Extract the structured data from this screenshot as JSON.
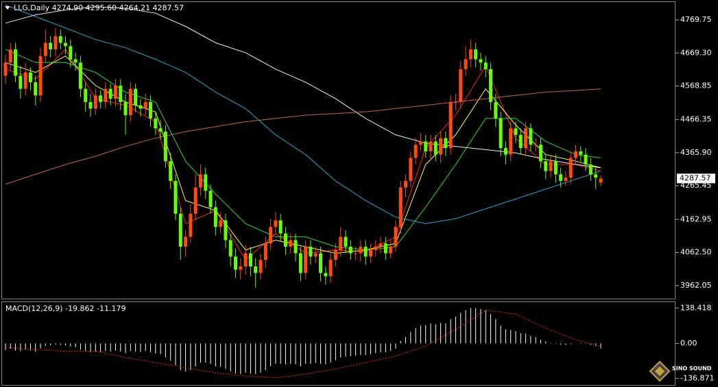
{
  "watermark": "SINO SOUND",
  "chart_data": [
    {
      "type": "candlestick",
      "title": "LLG,Daily  4274.90 4295.60 4264.21 4287.57",
      "up_color": "#ff4a10",
      "down_color": "#66ff00",
      "ylim": [
        3922,
        4824
      ],
      "yticks": [
        4769.75,
        {
          "value": 4669.3,
          "label": "4669.30"
        },
        4568.85,
        4466.35,
        {
          "value": 4365.9,
          "label": "4365.90"
        },
        4265.45,
        4162.95,
        {
          "value": 4062.5,
          "label": "4062.50"
        },
        3962.05
      ],
      "open": [
        4600,
        4640,
        4680,
        4600,
        4560,
        4610,
        4580,
        4540,
        4660,
        4700,
        4680,
        4720,
        4700,
        4690,
        4650,
        4640,
        4560,
        4520,
        4500,
        4540,
        4520,
        4560,
        4530,
        4570,
        4520,
        4480,
        4560,
        4510,
        4500,
        4520,
        4470,
        4440,
        4430,
        4340,
        4280,
        4180,
        4080,
        4110,
        4180,
        4260,
        4300,
        4250,
        4200,
        4140,
        4160,
        4100,
        4050,
        4010,
        4020,
        4060,
        4020,
        4000,
        4040,
        4090,
        4140,
        4160,
        4120,
        4080,
        4100,
        4060,
        4000,
        4080,
        4050,
        4060,
        4000,
        3990,
        4040,
        4070,
        4110,
        4080,
        4060,
        4060,
        4080,
        4050,
        4070,
        4080,
        4090,
        4060,
        4080,
        4140,
        4260,
        4280,
        4350,
        4390,
        4400,
        4370,
        4400,
        4360,
        4410,
        4380,
        4520,
        4520,
        4620,
        4650,
        4680,
        4650,
        4640,
        4620,
        4520,
        4470,
        4380,
        4360,
        4440,
        4420,
        4380,
        4440,
        4390,
        4390,
        4340,
        4310,
        4340,
        4300,
        4280,
        4290,
        4350,
        4370,
        4360,
        4330,
        4300,
        4274.9
      ],
      "high": [
        4665,
        4700,
        4700,
        4630,
        4640,
        4625,
        4600,
        4685,
        4740,
        4720,
        4745,
        4740,
        4720,
        4710,
        4670,
        4660,
        4580,
        4545,
        4560,
        4555,
        4580,
        4575,
        4590,
        4590,
        4545,
        4580,
        4575,
        4530,
        4545,
        4540,
        4490,
        4465,
        4450,
        4365,
        4300,
        4200,
        4130,
        4210,
        4300,
        4330,
        4320,
        4270,
        4220,
        4185,
        4180,
        4120,
        4075,
        4045,
        4085,
        4080,
        4045,
        4060,
        4110,
        4165,
        4185,
        4180,
        4140,
        4120,
        4120,
        4080,
        4100,
        4100,
        4080,
        4080,
        4020,
        4060,
        4090,
        4140,
        4130,
        4100,
        4080,
        4100,
        4100,
        4090,
        4100,
        4110,
        4110,
        4100,
        4160,
        4280,
        4300,
        4370,
        4410,
        4425,
        4420,
        4420,
        4420,
        4430,
        4430,
        4540,
        4545,
        4645,
        4690,
        4710,
        4700,
        4670,
        4660,
        4640,
        4545,
        4490,
        4400,
        4460,
        4460,
        4440,
        4460,
        4455,
        4410,
        4410,
        4360,
        4360,
        4360,
        4320,
        4310,
        4370,
        4390,
        4385,
        4380,
        4350,
        4320,
        4295.6
      ],
      "low": [
        4575,
        4620,
        4580,
        4530,
        4540,
        4555,
        4510,
        4520,
        4640,
        4655,
        4660,
        4680,
        4665,
        4625,
        4615,
        4535,
        4490,
        4475,
        4480,
        4500,
        4500,
        4510,
        4505,
        4495,
        4420,
        4460,
        4490,
        4475,
        4480,
        4445,
        4420,
        4405,
        4320,
        4255,
        4160,
        4040,
        4050,
        4090,
        4160,
        4235,
        4225,
        4180,
        4115,
        4120,
        4075,
        4020,
        3985,
        3980,
        3995,
        3990,
        3955,
        3980,
        4015,
        4070,
        4115,
        4095,
        4055,
        4060,
        4035,
        3975,
        3980,
        4025,
        4030,
        3975,
        3965,
        3970,
        4020,
        4050,
        4060,
        4040,
        4040,
        4035,
        4025,
        4030,
        4050,
        4060,
        4040,
        4045,
        4065,
        4120,
        4230,
        4260,
        4330,
        4370,
        4350,
        4345,
        4340,
        4335,
        4355,
        4360,
        4495,
        4500,
        4600,
        4625,
        4625,
        4615,
        4595,
        4495,
        4445,
        4355,
        4330,
        4340,
        4395,
        4360,
        4355,
        4370,
        4370,
        4320,
        4285,
        4290,
        4275,
        4260,
        4265,
        4270,
        4330,
        4340,
        4310,
        4280,
        4255,
        4264.21
      ],
      "close": [
        4640,
        4680,
        4600,
        4560,
        4610,
        4580,
        4540,
        4660,
        4700,
        4680,
        4720,
        4700,
        4690,
        4650,
        4640,
        4560,
        4520,
        4500,
        4540,
        4520,
        4560,
        4530,
        4570,
        4520,
        4480,
        4560,
        4510,
        4500,
        4520,
        4470,
        4440,
        4430,
        4340,
        4280,
        4180,
        4080,
        4110,
        4180,
        4260,
        4300,
        4250,
        4200,
        4140,
        4160,
        4100,
        4050,
        4010,
        4020,
        4060,
        4020,
        4000,
        4040,
        4090,
        4140,
        4160,
        4120,
        4080,
        4100,
        4060,
        4000,
        4080,
        4050,
        4060,
        4000,
        3990,
        4040,
        4070,
        4110,
        4080,
        4060,
        4060,
        4080,
        4050,
        4070,
        4080,
        4090,
        4060,
        4080,
        4140,
        4260,
        4280,
        4350,
        4390,
        4400,
        4370,
        4400,
        4360,
        4410,
        4380,
        4520,
        4520,
        4620,
        4650,
        4680,
        4650,
        4640,
        4620,
        4520,
        4470,
        4380,
        4360,
        4440,
        4420,
        4380,
        4440,
        4390,
        4390,
        4340,
        4310,
        4340,
        4300,
        4280,
        4290,
        4350,
        4370,
        4360,
        4330,
        4300,
        4290,
        4287.57
      ],
      "series": [
        {
          "color": "#ff2a00",
          "x": [
            0,
            6,
            12,
            18,
            24,
            30,
            36,
            42,
            48,
            54,
            60,
            66,
            72,
            78,
            84,
            90,
            96,
            102,
            108,
            114,
            119
          ],
          "values": [
            4620,
            4590,
            4680,
            4530,
            4510,
            4460,
            4150,
            4190,
            4040,
            4120,
            4060,
            4070,
            4065,
            4110,
            4380,
            4480,
            4630,
            4410,
            4330,
            4330,
            4310
          ]
        },
        {
          "color": "#ffff60",
          "x": [
            0,
            6,
            12,
            18,
            24,
            30,
            36,
            42,
            48,
            54,
            60,
            66,
            72,
            78,
            84,
            90,
            96,
            102,
            108,
            114,
            119
          ],
          "values": [
            4640,
            4610,
            4660,
            4570,
            4520,
            4490,
            4220,
            4190,
            4070,
            4100,
            4080,
            4060,
            4070,
            4090,
            4330,
            4420,
            4560,
            4450,
            4360,
            4340,
            4320
          ]
        },
        {
          "color": "#33dd33",
          "x": [
            0,
            6,
            12,
            18,
            24,
            30,
            36,
            42,
            48,
            54,
            60,
            66,
            72,
            78,
            84,
            90,
            96,
            102,
            108,
            114,
            119
          ],
          "values": [
            4680,
            4640,
            4640,
            4610,
            4550,
            4520,
            4340,
            4240,
            4150,
            4110,
            4110,
            4080,
            4070,
            4080,
            4200,
            4330,
            4470,
            4470,
            4400,
            4360,
            4350
          ]
        },
        {
          "color": "#22aacc",
          "x": [
            0,
            6,
            12,
            18,
            24,
            30,
            36,
            42,
            48,
            54,
            60,
            66,
            72,
            78,
            84,
            90,
            96,
            102,
            108,
            114,
            119
          ],
          "values": [
            4815,
            4780,
            4745,
            4710,
            4685,
            4650,
            4610,
            4550,
            4500,
            4420,
            4360,
            4280,
            4220,
            4170,
            4150,
            4165,
            4195,
            4225,
            4255,
            4285,
            4310
          ]
        },
        {
          "color": "#f0f0f0",
          "x": [
            0,
            6,
            12,
            18,
            24,
            30,
            36,
            42,
            48,
            54,
            60,
            66,
            72,
            78,
            84,
            90,
            96,
            102,
            108,
            114,
            119
          ],
          "values": [
            4760,
            4785,
            4800,
            4810,
            4805,
            4790,
            4750,
            4700,
            4670,
            4620,
            4580,
            4530,
            4470,
            4420,
            4395,
            4385,
            4375,
            4365,
            4345,
            4330,
            4320
          ]
        },
        {
          "color": "#d06050",
          "x": [
            0,
            6,
            12,
            18,
            24,
            30,
            36,
            42,
            48,
            54,
            60,
            66,
            72,
            78,
            84,
            90,
            96,
            102,
            108,
            114,
            119
          ],
          "values": [
            4270,
            4300,
            4330,
            4355,
            4385,
            4410,
            4430,
            4445,
            4460,
            4470,
            4480,
            4485,
            4490,
            4500,
            4510,
            4520,
            4530,
            4540,
            4550,
            4555,
            4560
          ]
        }
      ]
    },
    {
      "type": "macd",
      "title": "MACD(12,26,9) -19.862 -11.179",
      "color": "#ffffff",
      "ylim": [
        -160,
        162
      ],
      "yticks": [
        138.418,
        {
          "value": 0,
          "label": "0.00"
        },
        -136.871
      ],
      "values": [
        -25,
        -20,
        -28,
        -30,
        -25,
        -28,
        -32,
        -20,
        -10,
        -8,
        -5,
        -6,
        -8,
        -12,
        -15,
        -25,
        -32,
        -35,
        -32,
        -33,
        -30,
        -32,
        -28,
        -32,
        -38,
        -30,
        -32,
        -33,
        -30,
        -35,
        -40,
        -42,
        -55,
        -68,
        -85,
        -105,
        -110,
        -105,
        -90,
        -75,
        -75,
        -80,
        -90,
        -92,
        -100,
        -110,
        -118,
        -120,
        -115,
        -118,
        -120,
        -115,
        -105,
        -90,
        -80,
        -80,
        -82,
        -80,
        -82,
        -90,
        -80,
        -80,
        -76,
        -80,
        -82,
        -75,
        -65,
        -55,
        -52,
        -50,
        -48,
        -45,
        -45,
        -42,
        -38,
        -35,
        -35,
        -30,
        -20,
        10,
        25,
        45,
        60,
        70,
        72,
        78,
        75,
        80,
        78,
        95,
        105,
        120,
        130,
        138,
        138,
        135,
        130,
        115,
        95,
        70,
        55,
        52,
        48,
        40,
        38,
        30,
        25,
        15,
        8,
        2,
        -2,
        -5,
        -6,
        -3,
        0,
        2,
        -2,
        -6,
        -10,
        -19.862
      ],
      "signal": {
        "color": "#ff2020",
        "x": [
          0,
          6,
          12,
          18,
          24,
          30,
          36,
          42,
          48,
          54,
          60,
          66,
          72,
          78,
          84,
          90,
          96,
          102,
          108,
          114,
          119
        ],
        "values": [
          -15,
          -25,
          -30,
          -30,
          -55,
          -75,
          -95,
          -115,
          -128,
          -135,
          -120,
          -100,
          -75,
          -50,
          -10,
          55,
          130,
          115,
          60,
          15,
          -11.179
        ]
      }
    }
  ]
}
